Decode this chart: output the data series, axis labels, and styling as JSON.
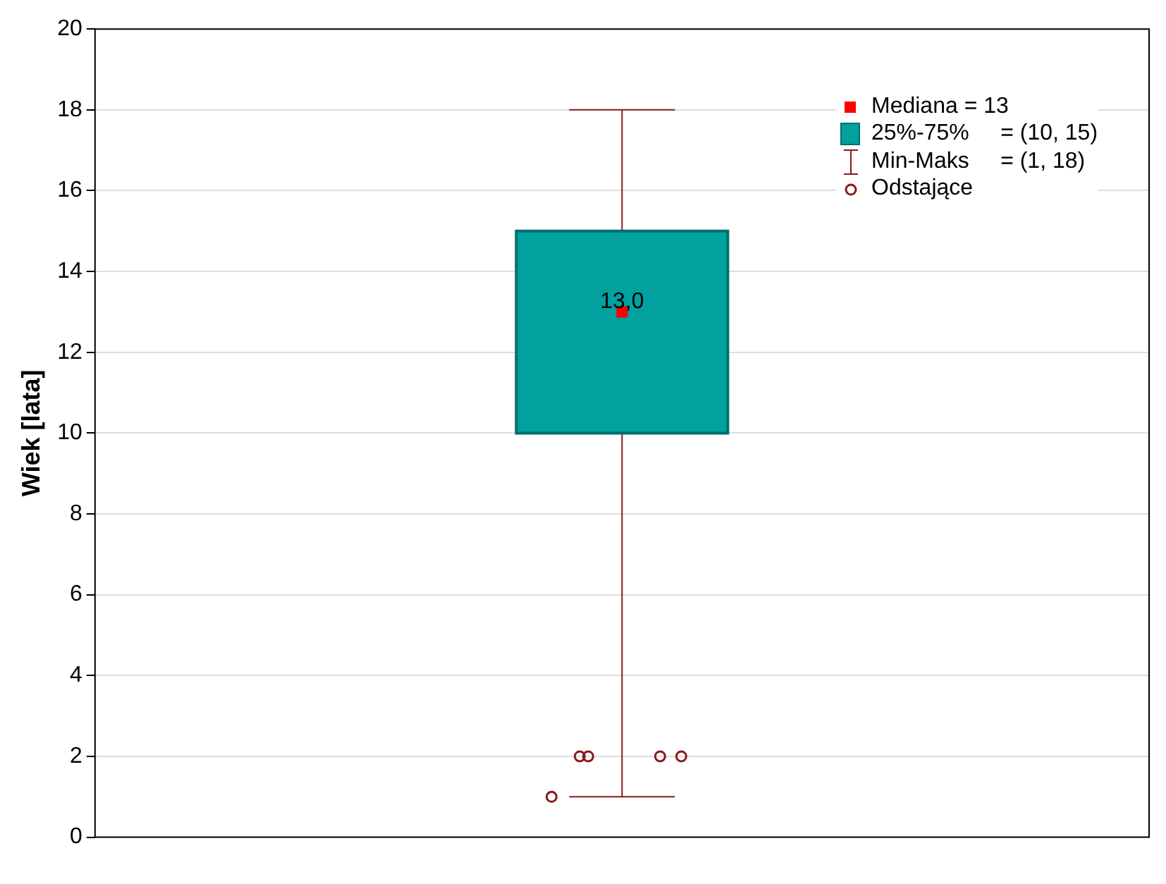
{
  "chart_data": {
    "type": "box",
    "ylabel": "Wiek [lata]",
    "categories": [
      null
    ],
    "color": "#00a19f",
    "boxes": [
      {
        "low": 1,
        "q1": 10,
        "median": 13,
        "q3": 15,
        "high": 18,
        "outliers": [
          1,
          2,
          2,
          2,
          2
        ]
      }
    ],
    "ylim": [
      0,
      20
    ],
    "yticks": [
      0,
      2,
      4,
      6,
      8,
      10,
      12,
      14,
      16,
      18,
      20
    ],
    "grid": "y",
    "annotations": [
      "Mediana = 13",
      "25%-75%     = (10, 15)",
      "Min-Maks     = (1, 18)",
      "Odstające",
      {
        "text": "13,0",
        "y": 13
      }
    ]
  }
}
